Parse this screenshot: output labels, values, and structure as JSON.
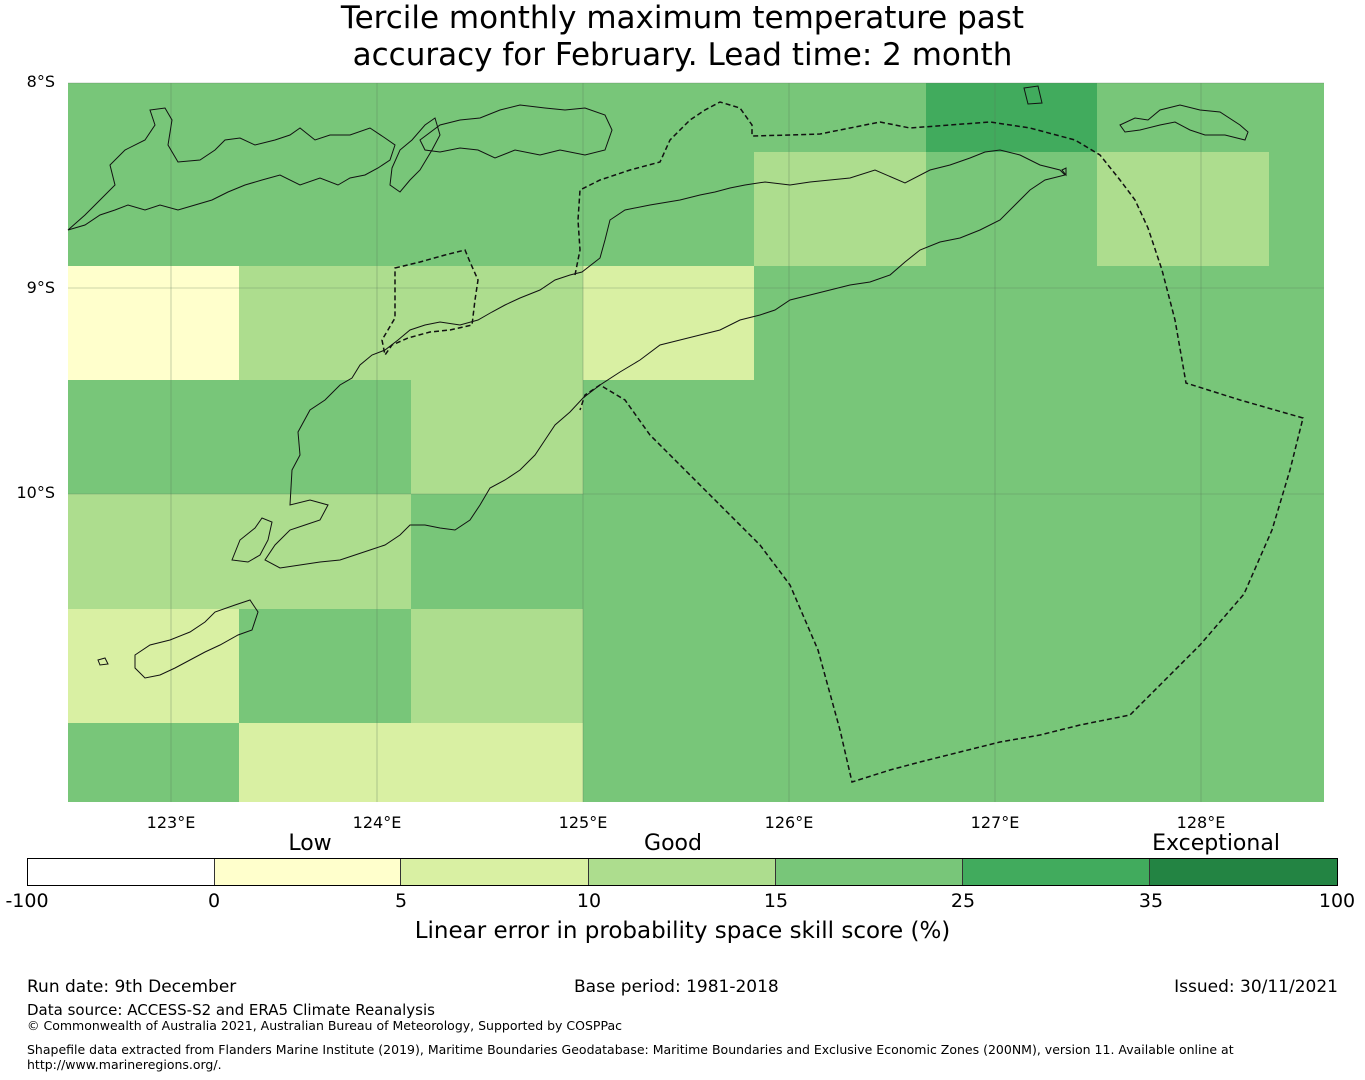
{
  "title": {
    "line1": "Tercile monthly maximum temperature past",
    "line2": "accuracy for February. Lead time: 2 month"
  },
  "map": {
    "lat_labels": [
      "8°S",
      "9°S",
      "10°S"
    ],
    "lon_labels": [
      "123°E",
      "124°E",
      "125°E",
      "126°E",
      "127°E",
      "128°E"
    ],
    "grid_skill_class": [
      [
        "15-25",
        "15-25",
        "15-25",
        "15-25",
        "15-25",
        "25-35",
        "15-25",
        "15-25"
      ],
      [
        "15-25",
        "15-25",
        "15-25",
        "15-25",
        "10-15",
        "15-25",
        "10-15",
        "15-25"
      ],
      [
        "0-5",
        "10-15",
        "10-15",
        "5-10",
        "15-25",
        "15-25",
        "15-25",
        "15-25"
      ],
      [
        "15-25",
        "15-25",
        "10-15",
        "15-25",
        "15-25",
        "15-25",
        "15-25",
        "15-25"
      ],
      [
        "10-15",
        "10-15",
        "15-25",
        "15-25",
        "15-25",
        "15-25",
        "15-25",
        "15-25"
      ],
      [
        "5-10",
        "15-25",
        "10-15",
        "15-25",
        "15-25",
        "15-25",
        "15-25",
        "15-25"
      ],
      [
        "15-25",
        "5-10",
        "5-10",
        "15-25",
        "15-25",
        "15-25",
        "15-25",
        "15-25"
      ]
    ]
  },
  "legend": {
    "categories": [
      "Low",
      "Good",
      "Exceptional"
    ],
    "ticks": [
      "-100",
      "0",
      "5",
      "10",
      "15",
      "25",
      "35",
      "100"
    ],
    "bins": [
      {
        "range": "-100-0",
        "color": "#ffffff"
      },
      {
        "range": "0-5",
        "color": "#ffffcc"
      },
      {
        "range": "5-10",
        "color": "#d9f0a3"
      },
      {
        "range": "10-15",
        "color": "#addd8e"
      },
      {
        "range": "15-25",
        "color": "#78c679"
      },
      {
        "range": "25-35",
        "color": "#41ab5d"
      },
      {
        "range": "35-100",
        "color": "#238443"
      }
    ],
    "title": "Linear error in probability space skill score (%)"
  },
  "footer": {
    "run_date": "Run date: 9th December",
    "base_period": "Base period: 1981-2018",
    "issued": "Issued: 30/11/2021",
    "data_source": "Data source: ACCESS-S2 and ERA5 Climate Reanalysis",
    "copyright": "© Commonwealth of Australia 2021, Australian Bureau of Meteorology, Supported by COSPPac",
    "shapefile_line1": "Shapefile data extracted from Flanders Marine Institute (2019), Maritime Boundaries Geodatabase: Maritime Boundaries and Exclusive Economic Zones (200NM), version 11. Available online at",
    "shapefile_line2": "http://www.marineregions.org/."
  }
}
